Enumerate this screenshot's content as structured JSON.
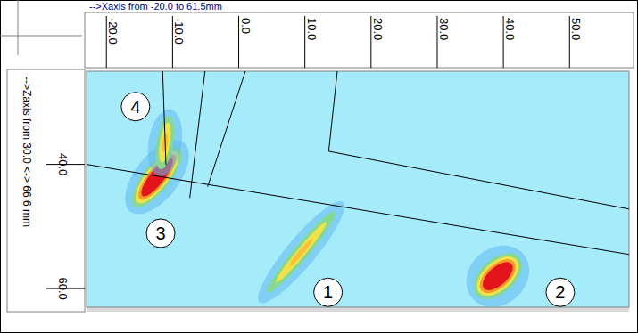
{
  "chart_data": {
    "type": "scan",
    "title": "-->Xaxis from -20.0 to 61.5mm",
    "y_label": "-->Zaxis from 30.0 <-> 66.6 mm",
    "xlim": [
      -23,
      59
    ],
    "ylim": [
      25,
      63
    ],
    "xticks": [
      {
        "value": -20,
        "label": "-20.0"
      },
      {
        "value": -10,
        "label": "-10.0"
      },
      {
        "value": 0,
        "label": "0.0"
      },
      {
        "value": 10,
        "label": "10.0"
      },
      {
        "value": 20,
        "label": "20.0"
      },
      {
        "value": 30,
        "label": "30.0"
      },
      {
        "value": 40,
        "label": "40.0"
      },
      {
        "value": 50,
        "label": "50.0"
      }
    ],
    "yticks": [
      {
        "value": 40,
        "label": "40.0"
      },
      {
        "value": 60,
        "label": "60.0"
      }
    ],
    "indications": [
      {
        "label": "1",
        "x1": 4.4,
        "z1": 60.6,
        "x2": 14.5,
        "z2": 47.7,
        "width": 2.2,
        "color": "yellow",
        "label_x": 13.5,
        "label_z": 60.6
      },
      {
        "label": "2",
        "x1": 36.1,
        "z1": 60.9,
        "x2": 42.2,
        "z2": 55.1,
        "width": 4.5,
        "color": "red",
        "label_x": 48.6,
        "label_z": 60.6
      },
      {
        "label": "3",
        "x1": -15.6,
        "z1": 46.5,
        "x2": -9.1,
        "z2": 37.6,
        "width": 3.5,
        "color": "red",
        "label_x": -11.8,
        "label_z": 51.1
      },
      {
        "label": "4",
        "x1": -11.8,
        "z1": 40.8,
        "x2": -10.5,
        "z2": 32.2,
        "width": 2.5,
        "color": "yellow",
        "label_x": -15.6,
        "label_z": 30.7
      }
    ],
    "overlay_lines": [
      {
        "x": [
          -23,
          59
        ],
        "z": [
          40.0,
          54.5
        ]
      },
      {
        "x": [
          -11.5,
          -11.0
        ],
        "z": [
          25,
          40.1
        ]
      },
      {
        "x": [
          -5.1,
          -7.4
        ],
        "z": [
          25,
          45.4
        ]
      },
      {
        "x": [
          1.0,
          -4.7
        ],
        "z": [
          25,
          43.6
        ]
      },
      {
        "x": [
          14.9,
          13.6,
          59
        ],
        "z": [
          25,
          37.9,
          47.2
        ]
      }
    ]
  }
}
